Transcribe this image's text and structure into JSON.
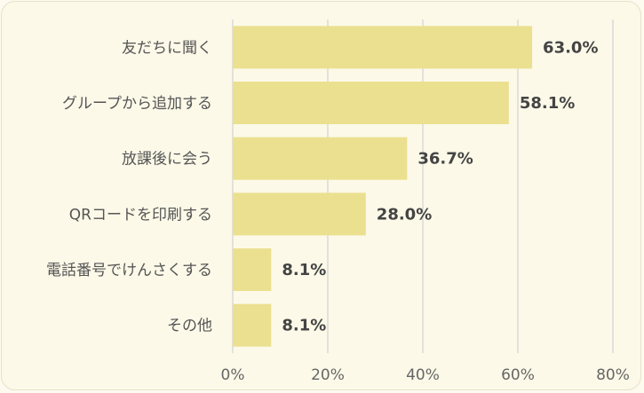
{
  "chart_data": {
    "type": "bar",
    "orientation": "horizontal",
    "categories": [
      "友だちに聞く",
      "グループから追加する",
      "放課後に会う",
      "QRコードを印刷する",
      "電話番号でけんさくする",
      "その他"
    ],
    "values": [
      63.0,
      58.1,
      36.7,
      28.0,
      8.1,
      8.1
    ],
    "value_labels": [
      "63.0%",
      "58.1%",
      "36.7%",
      "28.0%",
      "8.1%",
      "8.1%"
    ],
    "x_ticks": [
      "0%",
      "20%",
      "40%",
      "60%",
      "80%"
    ],
    "xlim": [
      0,
      80
    ],
    "grid": true,
    "colors": {
      "bar": "#ebe08f",
      "grid": "#d9d9d9",
      "background": "#fcf9e8"
    }
  }
}
